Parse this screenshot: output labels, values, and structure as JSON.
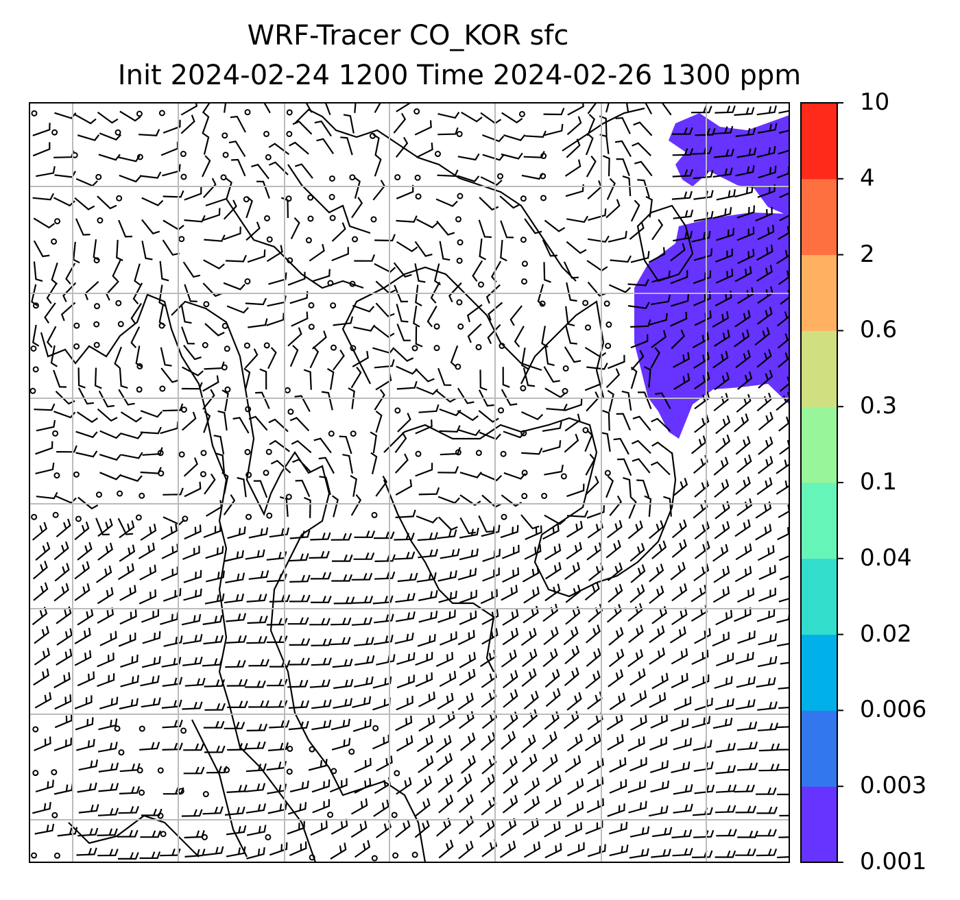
{
  "title": {
    "line1": "WRF-Tracer CO_KOR sfc",
    "line2": "Init 2024-02-24 1200 Time 2024-02-26 1300 ppm"
  },
  "colorbar": {
    "levels": [
      "0.001",
      "0.003",
      "0.006",
      "0.02",
      "0.04",
      "0.1",
      "0.3",
      "0.6",
      "2",
      "4",
      "10"
    ],
    "colors": [
      "#6633ff",
      "#3377ee",
      "#00b0e8",
      "#33ddcc",
      "#66f5b8",
      "#99f599",
      "#d0e080",
      "#ffb060",
      "#ff7040",
      "#ff2a1a"
    ]
  },
  "map": {
    "plume_color": "#6633ff",
    "grid_color": "#bbbbbb",
    "coastline_color": "#000000",
    "wind_barb_color": "#000000"
  }
}
